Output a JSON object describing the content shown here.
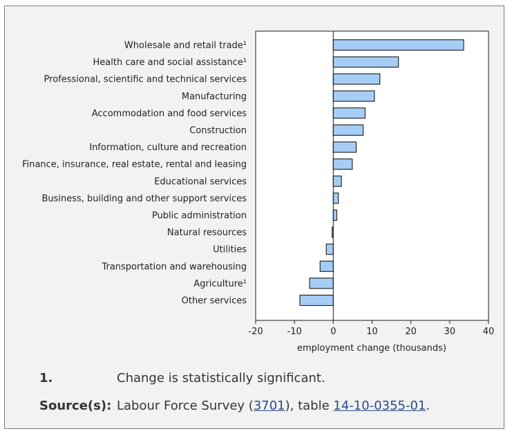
{
  "chart_data": {
    "type": "bar",
    "orientation": "horizontal",
    "categories": [
      "Wholesale and retail trade¹",
      "Health care and social assistance¹",
      "Professional, scientific and technical services",
      "Manufacturing",
      "Accommodation and food services",
      "Construction",
      "Information, culture and recreation",
      "Finance, insurance, real estate, rental and leasing",
      "Educational services",
      "Business, building and other support services",
      "Public administration",
      "Natural resources",
      "Utilities",
      "Transportation and warehousing",
      "Agriculture¹",
      "Other services"
    ],
    "values": [
      33.6,
      16.8,
      12.0,
      10.6,
      8.2,
      7.7,
      5.9,
      4.9,
      2.1,
      1.3,
      0.9,
      -0.3,
      -1.8,
      -3.4,
      -6.1,
      -8.6
    ],
    "title": "",
    "xlabel": "employment change (thousands)",
    "ylabel": "",
    "xlim": [
      -20,
      40
    ],
    "xticks": [
      -20,
      -10,
      0,
      10,
      20,
      30,
      40
    ],
    "grid": false,
    "colors": {
      "bar_fill": "#a6cdf5",
      "bar_stroke": "#1a1a1a"
    }
  },
  "notes": {
    "footnote_key": "1.",
    "footnote_text": "Change is statistically significant.",
    "source_key": "Source(s):",
    "source_prefix": "Labour Force Survey (",
    "source_survey_link": "3701",
    "source_middle": "), table ",
    "source_table_link": "14-10-0355-01",
    "source_suffix": "."
  }
}
